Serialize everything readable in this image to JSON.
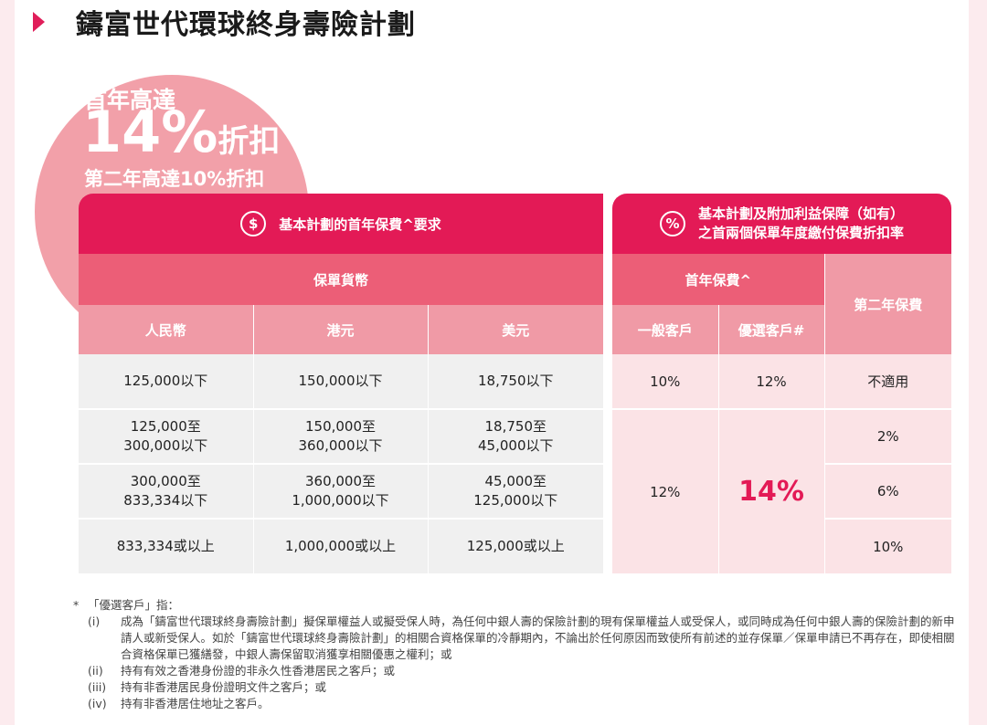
{
  "title": "鑄富世代環球終身壽險計劃",
  "badge": {
    "line1": "首年高達",
    "percent": "14%",
    "discount": "折扣",
    "line3": "第二年高達10%折扣"
  },
  "left_table": {
    "header_icon": "$",
    "header": "基本計劃的首年保費^要求",
    "currency_header": "保單貨幣",
    "columns": [
      "人民幣",
      "港元",
      "美元"
    ],
    "rows": [
      [
        "125,000以下",
        "150,000以下",
        "18,750以下"
      ],
      [
        "125,000至\n300,000以下",
        "150,000至\n360,000以下",
        "18,750至\n45,000以下"
      ],
      [
        "300,000至\n833,334以下",
        "360,000至\n1,000,000以下",
        "45,000至\n125,000以下"
      ],
      [
        "833,334或以上",
        "1,000,000或以上",
        "125,000或以上"
      ]
    ]
  },
  "right_table": {
    "header_icon": "%",
    "header_line1": "基本計劃及附加利益保障（如有）",
    "header_line2": "之首兩個保單年度繳付保費折扣率",
    "first_year": "首年保費^",
    "second_year": "第二年保費",
    "general": "一般客戶",
    "premier": "優選客戶#",
    "row1": {
      "general": "10%",
      "premier": "12%",
      "second": "不適用"
    },
    "merged_general": "12%",
    "merged_premier": "14%",
    "second_rows": [
      "2%",
      "6%",
      "10%"
    ]
  },
  "notes": {
    "star": "*",
    "title": "「優選客戶」指：",
    "items": [
      {
        "num": "(i)",
        "text": "成為「鑄富世代環球終身壽險計劃」擬保單權益人或擬受保人時，為任何中銀人壽的保險計劃的現有保單權益人或受保人，或同時成為任何中銀人壽的保險計劃的新申請人或新受保人。如於「鑄富世代環球終身壽險計劃」的相關合資格保單的冷靜期內，不論出於任何原因而致使所有前述的並存保單／保單申請已不再存在，即使相關合資格保單已獲繕發，中銀人壽保留取消獲享相關優惠之權利；或"
      },
      {
        "num": "(ii)",
        "text": "持有有效之香港身份證的非永久性香港居民之客戶；或"
      },
      {
        "num": "(iii)",
        "text": "持有非香港居民身份證明文件之客戶；或"
      },
      {
        "num": "(iv)",
        "text": "持有非香港居住地址之客戶。"
      }
    ]
  }
}
